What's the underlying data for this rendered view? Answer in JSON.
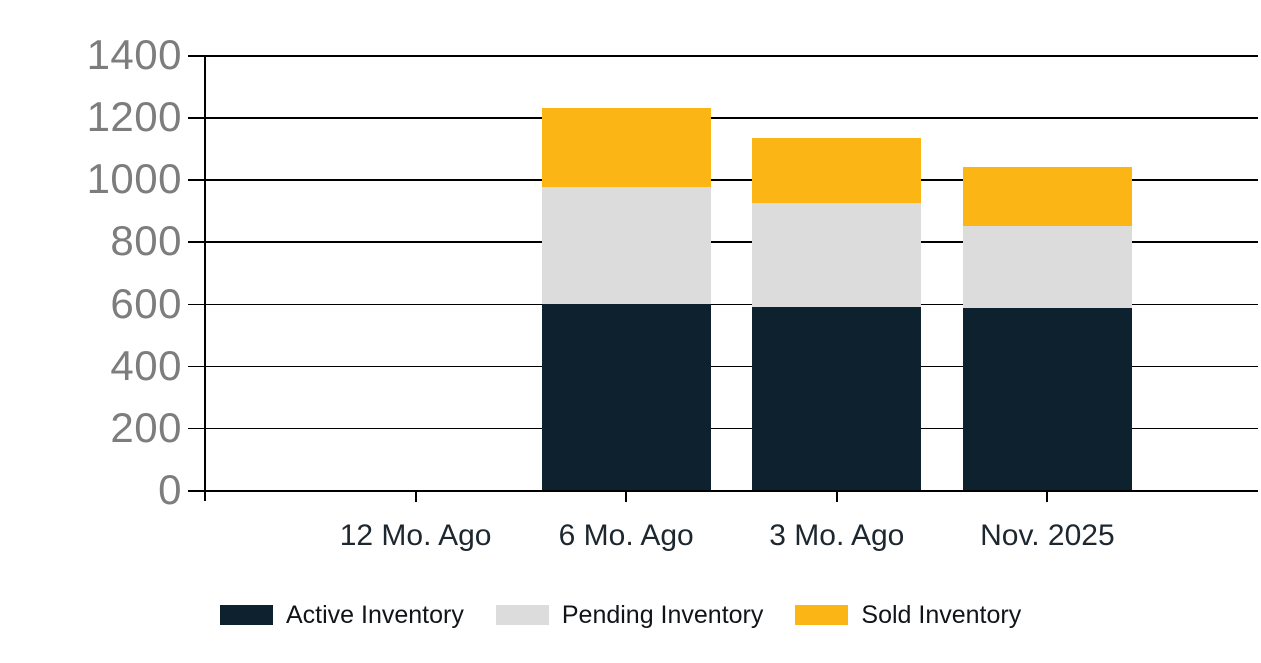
{
  "chart_data": {
    "type": "bar",
    "stacked": true,
    "title": "",
    "categories": [
      "12 Mo. Ago",
      "6 Mo. Ago",
      "3 Mo. Ago",
      "Nov. 2025"
    ],
    "series": [
      {
        "name": "Active Inventory",
        "color": "#0d212f",
        "values": [
          0,
          600,
          590,
          585
        ]
      },
      {
        "name": "Pending Inventory",
        "color": "#dcdcdc",
        "values": [
          0,
          375,
          335,
          265
        ]
      },
      {
        "name": "Sold Inventory",
        "color": "#fbb515",
        "values": [
          0,
          255,
          210,
          190
        ]
      }
    ],
    "yaxis": {
      "min": 0,
      "max": 1400,
      "step": 200,
      "ticks": [
        0,
        200,
        400,
        600,
        800,
        1000,
        1200,
        1400
      ]
    },
    "xlabel": "",
    "ylabel": "",
    "grid": true,
    "legend_position": "bottom",
    "axis_color": "#000000",
    "y_label_color": "#7d7d7d",
    "x_label_color": "#1d2730",
    "background_color": "#ffffff"
  }
}
